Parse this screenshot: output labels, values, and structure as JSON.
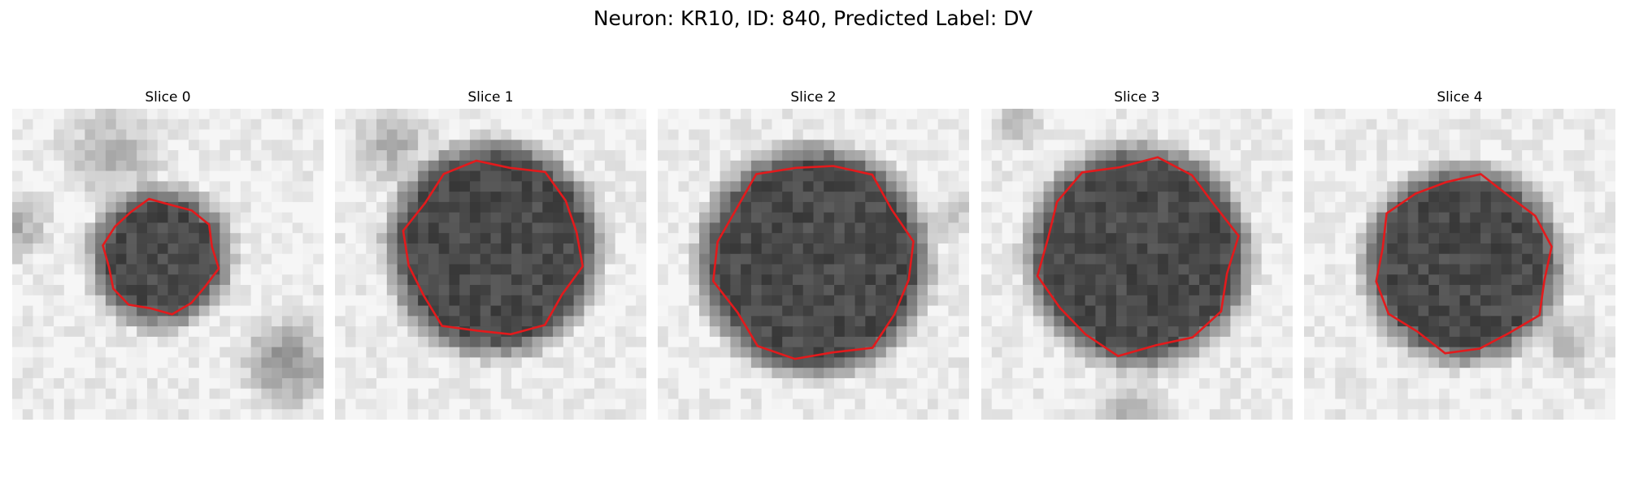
{
  "figure": {
    "title": "Neuron: KR10, ID: 840, Predicted Label: DV",
    "panels": [
      {
        "title": "Slice 0"
      },
      {
        "title": "Slice 1"
      },
      {
        "title": "Slice 2"
      },
      {
        "title": "Slice 3"
      },
      {
        "title": "Slice 4"
      }
    ],
    "colors": {
      "contour": "#e31a1c",
      "image_dark": "#141414",
      "image_light": "#f2f2f2"
    },
    "colormap": "gray"
  }
}
